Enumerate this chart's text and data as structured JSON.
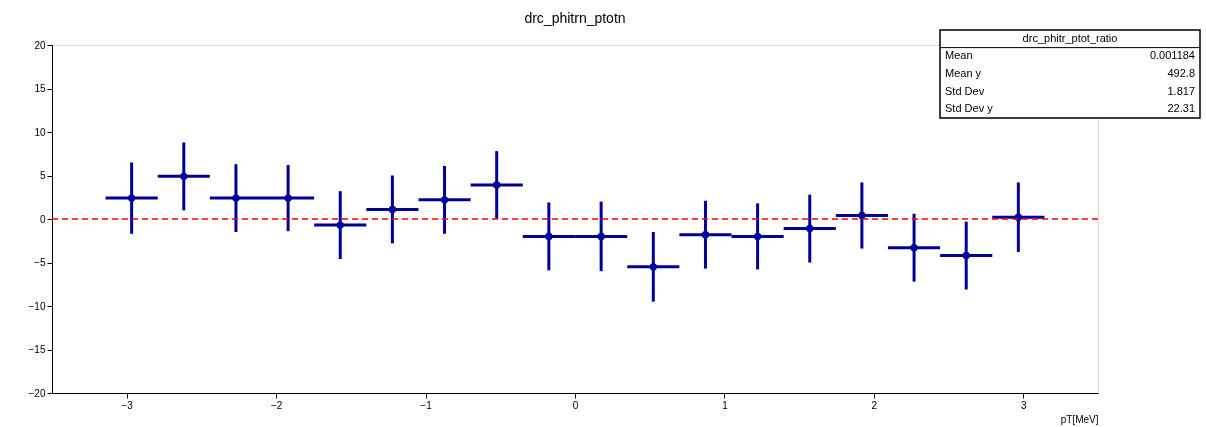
{
  "chart_data": {
    "type": "scatter",
    "title": "drc_phitrn_ptotn",
    "xlabel": "pT[MeV]",
    "x": [
      -2.967,
      -2.618,
      -2.269,
      -1.92,
      -1.571,
      -1.222,
      -0.873,
      -0.524,
      -0.175,
      0.175,
      0.524,
      0.873,
      1.222,
      1.571,
      1.92,
      2.269,
      2.618,
      2.967
    ],
    "series": [
      {
        "color": "#000099",
        "values": [
          2.4,
          4.9,
          2.4,
          2.4,
          -0.7,
          1.1,
          2.2,
          3.9,
          -2.0,
          -2.0,
          -5.5,
          -1.8,
          -2.0,
          -1.1,
          0.4,
          -3.3,
          -4.2,
          0.2
        ],
        "errors": [
          4.1,
          3.9,
          3.9,
          3.8,
          3.9,
          3.9,
          3.9,
          3.9,
          3.9,
          4.0,
          4.0,
          3.9,
          3.8,
          3.9,
          3.8,
          3.9,
          3.9,
          4.0
        ],
        "xerrors": [
          0.1745,
          0.1745,
          0.1745,
          0.1745,
          0.1745,
          0.1745,
          0.1745,
          0.1745,
          0.1745,
          0.1745,
          0.1745,
          0.1745,
          0.1745,
          0.1745,
          0.1745,
          0.1745,
          0.1745,
          0.1745
        ]
      }
    ],
    "marker": "circle",
    "xlim": [
      -3.5,
      3.5
    ],
    "xticks": [
      -3,
      -2,
      -1,
      0,
      1,
      2,
      3
    ],
    "ylim": [
      -20,
      20
    ],
    "yticks": [
      -20,
      -15,
      -10,
      -5,
      0,
      5,
      10,
      15,
      20
    ],
    "grid": false,
    "legend": false,
    "ref_lines": [
      {
        "axis": "y",
        "value": 0,
        "color": "#ff0000",
        "line_style": "dashed"
      }
    ],
    "annotations": [
      "drc_phitr_ptot_ratio",
      "Mean",
      "0.001184",
      "Mean y",
      "492.8",
      "Std Dev",
      "1.817",
      "Std Dev y",
      "22.31"
    ]
  }
}
